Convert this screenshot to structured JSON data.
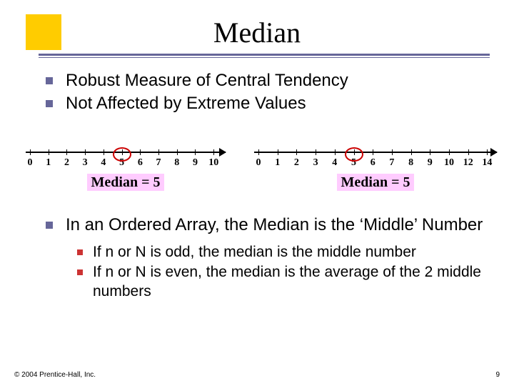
{
  "title": "Median",
  "bullets_top": [
    "Robust Measure of Central Tendency",
    "Not Affected by Extreme Values"
  ],
  "numlines": {
    "left": {
      "values": [
        0,
        1,
        2,
        3,
        4,
        5,
        6,
        7,
        8,
        9,
        10
      ],
      "ring_at": 5,
      "median_label": "Median = 5",
      "highlight_bg": "#ffccff",
      "ring_color": "#cc0000"
    },
    "right": {
      "values": [
        0,
        1,
        2,
        3,
        4,
        5,
        6,
        7,
        8,
        9,
        10,
        12,
        14
      ],
      "ring_at": 5,
      "median_label": "Median = 5",
      "highlight_bg": "#ffccff",
      "ring_color": "#cc0000"
    }
  },
  "bullet_main": "In an Ordered Array, the Median is the ‘Middle’ Number",
  "bullets_sub": [
    "If n or N is odd, the median is the middle number",
    "If n or N is even, the median is the average of the 2 middle numbers"
  ],
  "colors": {
    "accent_box": "#ffcc00",
    "rule": "#666699",
    "bullet1": "#666699",
    "bullet2": "#cc3333"
  },
  "footer": {
    "copyright": "© 2004 Prentice-Hall, Inc.",
    "page": "9"
  }
}
